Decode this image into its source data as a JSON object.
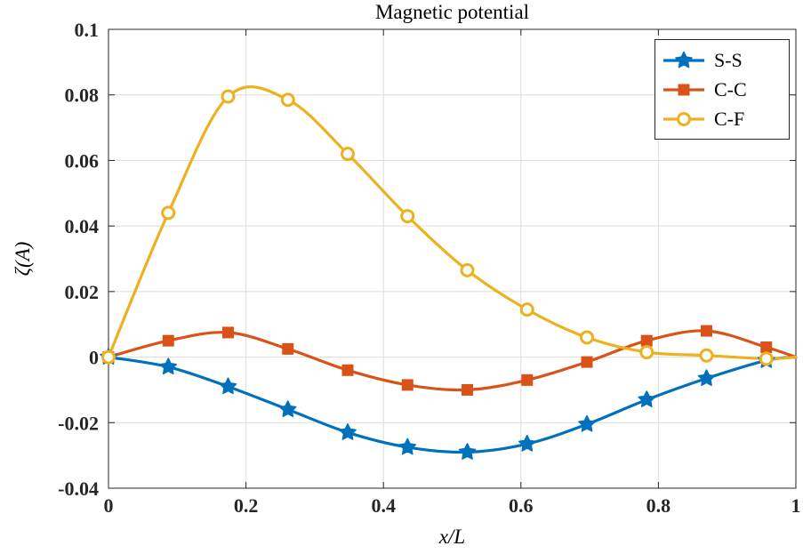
{
  "chart_data": {
    "type": "line",
    "title": "Magnetic potential",
    "xlabel": "x/L",
    "ylabel": "ζ(A)",
    "xlim": [
      0,
      1
    ],
    "ylim": [
      -0.04,
      0.1
    ],
    "x_ticks": [
      0,
      0.2,
      0.4,
      0.6,
      0.8,
      1
    ],
    "x_tick_labels": [
      "0",
      "0.2",
      "0.4",
      "0.6",
      "0.8",
      "1"
    ],
    "y_ticks": [
      -0.04,
      -0.02,
      0,
      0.02,
      0.04,
      0.06,
      0.08,
      0.1
    ],
    "y_tick_labels": [
      "-0.04",
      "-0.02",
      "0",
      "0.02",
      "0.04",
      "0.06",
      "0.08",
      "0.1"
    ],
    "grid": true,
    "legend_position": "top-right",
    "grid_color": "#dcdcdc",
    "axis_color": "#262626",
    "x": [
      0,
      0.087,
      0.174,
      0.261,
      0.348,
      0.435,
      0.522,
      0.609,
      0.696,
      0.783,
      0.87,
      0.957,
      1
    ],
    "marker_indices": [
      0,
      1,
      2,
      3,
      4,
      5,
      6,
      7,
      8,
      9,
      10,
      11
    ],
    "series": [
      {
        "name": "S-S",
        "color": "#0072BD",
        "marker": "pentagram",
        "values": [
          0,
          -0.003,
          -0.009,
          -0.016,
          -0.023,
          -0.0275,
          -0.029,
          -0.0265,
          -0.0205,
          -0.013,
          -0.0065,
          -0.001,
          0
        ]
      },
      {
        "name": "C-C",
        "color": "#D95319",
        "marker": "square",
        "values": [
          0,
          0.005,
          0.0075,
          0.0025,
          -0.004,
          -0.0085,
          -0.01,
          -0.007,
          -0.0015,
          0.005,
          0.008,
          0.003,
          0
        ]
      },
      {
        "name": "C-F",
        "color": "#EDB120",
        "marker": "circle",
        "values": [
          0,
          0.044,
          0.0795,
          0.0785,
          0.062,
          0.043,
          0.0265,
          0.0145,
          0.006,
          0.0015,
          0.0005,
          -0.0005,
          0
        ]
      }
    ]
  }
}
